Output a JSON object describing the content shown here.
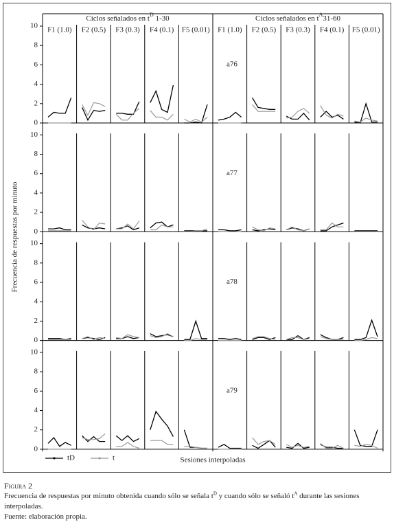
{
  "chart_data": {
    "type": "line",
    "title_left": [
      "Ciclos señalados en t",
      "D",
      " 1-30"
    ],
    "title_right": [
      "Ciclos señalados en t",
      "A",
      "31-60"
    ],
    "column_labels": [
      "F1 (1.0)",
      "F2 (0.5)",
      "F3 (0.3)",
      "F4 (0.1)",
      "F5 (0.01)"
    ],
    "ylabel": "Frecuencia de respuestas por minuto",
    "xlabel": "Sesiones interpoladas",
    "ylim": [
      0,
      10
    ],
    "yticks": [
      0,
      2,
      4,
      6,
      8,
      10
    ],
    "series": [
      {
        "name": "tD",
        "color": "#000000"
      },
      {
        "name": "t",
        "color": "#999999"
      }
    ],
    "rows": [
      {
        "subject": "a76",
        "panels": [
          {
            "values": [
              [
                0.6,
                1.1,
                1.0,
                1.0,
                2.6
              ],
              [
                0,
                0,
                0,
                0,
                0
              ]
            ]
          },
          {
            "values": [
              [
                1.6,
                0.3,
                1.3,
                1.2,
                1.3
              ],
              [
                1.9,
                0.8,
                2.1,
                2.0,
                1.7
              ]
            ]
          },
          {
            "values": [
              [
                1.0,
                1.0,
                0.9,
                0.9,
                2.2
              ],
              [
                0.9,
                0.3,
                0.3,
                1.0,
                1.5
              ]
            ]
          },
          {
            "values": [
              [
                2.1,
                3.3,
                1.4,
                1.1,
                3.9
              ],
              [
                1.3,
                0.6,
                0.6,
                0.3,
                0.9
              ]
            ]
          },
          {
            "values": [
              [
                0,
                0,
                0.1,
                0,
                1.9
              ],
              [
                0.4,
                0.1,
                0.4,
                0.1,
                0.6
              ]
            ]
          },
          {
            "values": [
              [
                0.3,
                0.4,
                0.6,
                1.1,
                0.6
              ],
              [
                0,
                0,
                0,
                0,
                0
              ]
            ]
          },
          {
            "values": [
              [
                2.6,
                1.6,
                1.5,
                1.4,
                1.4
              ],
              [
                1.9,
                1.2,
                1.2,
                1.2,
                1.2
              ]
            ]
          },
          {
            "values": [
              [
                0.7,
                0.4,
                0.4,
                1.0,
                0.3
              ],
              [
                0.5,
                0.6,
                1.2,
                1.5,
                1.0
              ]
            ]
          },
          {
            "values": [
              [
                0.6,
                1.2,
                0.6,
                0.8,
                0.4
              ],
              [
                1.8,
                0.8,
                0.5,
                0.9,
                0.7
              ]
            ]
          },
          {
            "values": [
              [
                0.1,
                0,
                2.0,
                0.1,
                0.1
              ],
              [
                0.2,
                0.1,
                0.5,
                0.3,
                0.2
              ]
            ]
          }
        ]
      },
      {
        "subject": "a77",
        "panels": [
          {
            "values": [
              [
                0.3,
                0.3,
                0.4,
                0.2,
                0.2
              ],
              [
                0.1,
                0.1,
                0.1,
                0.1,
                0.1
              ]
            ]
          },
          {
            "values": [
              [
                0.7,
                0.4,
                0.3,
                0.4,
                0.3
              ],
              [
                1.2,
                0.5,
                0.2,
                0.9,
                0.8
              ]
            ]
          },
          {
            "values": [
              [
                0.3,
                0.4,
                0.6,
                0.2,
                0.4
              ],
              [
                0.3,
                0.3,
                0.8,
                0.3,
                1.1
              ]
            ]
          },
          {
            "values": [
              [
                0.4,
                0.9,
                1.0,
                0.5,
                0.7
              ],
              [
                0.2,
                0.2,
                0.7,
                0.5,
                0.5
              ]
            ]
          },
          {
            "values": [
              [
                0.1,
                0.1,
                0.1,
                0.1,
                0.1
              ],
              [
                0,
                0,
                0.1,
                0.1,
                0.3
              ]
            ]
          },
          {
            "values": [
              [
                0.2,
                0.2,
                0.1,
                0.1,
                0.2
              ],
              [
                0,
                0,
                0,
                0,
                0
              ]
            ]
          },
          {
            "values": [
              [
                0.2,
                0.1,
                0.2,
                0.3,
                0.2
              ],
              [
                0.5,
                0.2,
                0.1,
                0.4,
                0.3
              ]
            ]
          },
          {
            "values": [
              [
                0.2,
                0.4,
                0.3,
                0.1,
                0.3
              ],
              [
                0.2,
                0.5,
                0.2,
                0.1,
                0.3
              ]
            ]
          },
          {
            "values": [
              [
                0.1,
                0.1,
                0.5,
                0.7,
                0.9
              ],
              [
                0.2,
                0.2,
                0.9,
                0.5,
                0.5
              ]
            ]
          },
          {
            "values": [
              [
                0.1,
                0.1,
                0.1,
                0.1,
                0.1
              ],
              [
                0,
                0,
                0,
                0,
                0
              ]
            ]
          }
        ]
      },
      {
        "subject": "a78",
        "panels": [
          {
            "values": [
              [
                0.2,
                0.2,
                0.2,
                0.1,
                0.2
              ],
              [
                0.1,
                0.1,
                0.1,
                0.1,
                0.1
              ]
            ]
          },
          {
            "values": [
              [
                0.2,
                0.3,
                0.2,
                0.1,
                0.3
              ],
              [
                0.2,
                0.4,
                0.1,
                0.3,
                0.2
              ]
            ]
          },
          {
            "values": [
              [
                0.2,
                0.2,
                0.4,
                0.2,
                0.3
              ],
              [
                0.3,
                0.2,
                0.6,
                0.4,
                0.3
              ]
            ]
          },
          {
            "values": [
              [
                0.7,
                0.4,
                0.5,
                0.6,
                0.4
              ],
              [
                0.5,
                0.3,
                0.4,
                0.7,
                0.4
              ]
            ]
          },
          {
            "values": [
              [
                0.1,
                0.1,
                2.0,
                0.2,
                0.2
              ],
              [
                0,
                0,
                0.2,
                0.1,
                0.1
              ]
            ]
          },
          {
            "values": [
              [
                0.2,
                0.2,
                0.1,
                0.2,
                0.1
              ],
              [
                0,
                0,
                0,
                0,
                0
              ]
            ]
          },
          {
            "values": [
              [
                0.1,
                0.3,
                0.3,
                0.1,
                0.3
              ],
              [
                0.2,
                0.4,
                0.4,
                0.2,
                0.1
              ]
            ]
          },
          {
            "values": [
              [
                0.1,
                0.1,
                0.5,
                0.1,
                0.3
              ],
              [
                0.1,
                0.3,
                0.3,
                0.1,
                0.2
              ]
            ]
          },
          {
            "values": [
              [
                0.6,
                0.3,
                0.1,
                0.1,
                0.3
              ],
              [
                0.4,
                0.2,
                0.1,
                0.1,
                0.1
              ]
            ]
          },
          {
            "values": [
              [
                0.1,
                0.1,
                0.3,
                2.1,
                0.4
              ],
              [
                0,
                0,
                0.1,
                0.3,
                0.2
              ]
            ]
          }
        ]
      },
      {
        "subject": "a79",
        "panels": [
          {
            "values": [
              [
                0.6,
                1.2,
                0.3,
                0.7,
                0.4
              ],
              [
                0,
                0,
                0,
                0,
                0
              ]
            ]
          },
          {
            "values": [
              [
                1.4,
                0.8,
                1.3,
                0.8,
                0.8
              ],
              [
                1.2,
                1.0,
                1.0,
                1.1,
                1.6
              ]
            ]
          },
          {
            "values": [
              [
                1.4,
                0.9,
                1.4,
                0.8,
                1.1
              ],
              [
                0.3,
                0.3,
                0.7,
                0.3,
                0.1
              ]
            ]
          },
          {
            "values": [
              [
                2.0,
                3.9,
                3.1,
                2.4,
                1.3
              ],
              [
                0.9,
                0.9,
                0.9,
                0.5,
                0.5
              ]
            ]
          },
          {
            "values": [
              [
                2.0,
                0.2,
                0.2,
                0.1,
                0.1
              ],
              [
                0.3,
                0.3,
                0.2,
                0.1,
                0.1
              ]
            ]
          },
          {
            "values": [
              [
                0.2,
                0.5,
                0.1,
                0.1,
                0.1
              ],
              [
                0,
                0,
                0,
                0,
                0
              ]
            ]
          },
          {
            "values": [
              [
                0.4,
                0.1,
                0.5,
                0.9,
                0.2
              ],
              [
                1.2,
                0.5,
                0.8,
                0.9,
                0.5
              ]
            ]
          },
          {
            "values": [
              [
                0.2,
                0.1,
                0.6,
                0.1,
                0.2
              ],
              [
                0.5,
                0.2,
                0.4,
                0.2,
                0.3
              ]
            ]
          },
          {
            "values": [
              [
                0.5,
                0.2,
                0.2,
                0.1,
                0.1
              ],
              [
                0.6,
                0.1,
                0.1,
                0.4,
                0.1
              ]
            ]
          },
          {
            "values": [
              [
                2.0,
                0.4,
                0.3,
                0.3,
                2.0
              ],
              [
                0.4,
                0.3,
                0.5,
                0.4,
                0.1
              ]
            ]
          }
        ]
      }
    ]
  },
  "caption": {
    "figure": "Figura 2",
    "text": [
      "Frecuencia de respuestas por minuto obtenida cuando sólo se señala t",
      "D",
      " y cuando sólo se señaló t",
      "A",
      " durante las sesiones interpoladas."
    ],
    "source": "Fuente: elaboración propia."
  }
}
